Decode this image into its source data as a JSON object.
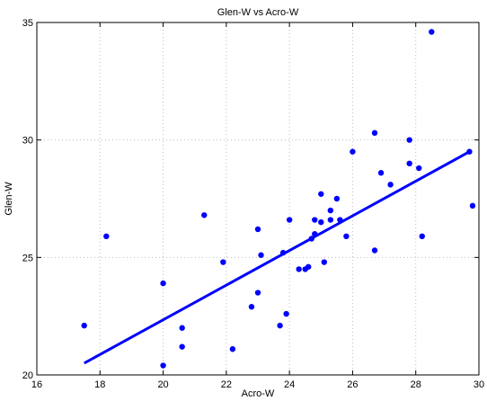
{
  "chart_data": {
    "type": "scatter",
    "title": "Glen-W vs Acro-W",
    "xlabel": "Acro-W",
    "ylabel": "Glen-W",
    "xlim": [
      16,
      30
    ],
    "ylim": [
      20,
      35
    ],
    "xticks": [
      16,
      18,
      20,
      22,
      24,
      26,
      28,
      30
    ],
    "yticks": [
      20,
      25,
      30,
      35
    ],
    "grid": true,
    "colors": {
      "points": "#0000ff",
      "fit_line": "#0000ff",
      "axes": "#000000",
      "grid": "#bfbfbf"
    },
    "series": [
      {
        "type": "scatter",
        "points": [
          [
            17.5,
            22.1
          ],
          [
            18.2,
            25.9
          ],
          [
            20.0,
            23.9
          ],
          [
            20.0,
            20.4
          ],
          [
            20.6,
            22.0
          ],
          [
            20.6,
            21.2
          ],
          [
            21.3,
            26.8
          ],
          [
            21.9,
            24.8
          ],
          [
            22.2,
            21.1
          ],
          [
            22.8,
            22.9
          ],
          [
            23.0,
            23.5
          ],
          [
            23.0,
            26.2
          ],
          [
            23.1,
            25.1
          ],
          [
            23.7,
            22.1
          ],
          [
            23.8,
            25.2
          ],
          [
            23.9,
            22.6
          ],
          [
            24.0,
            26.6
          ],
          [
            24.3,
            24.5
          ],
          [
            24.5,
            24.5
          ],
          [
            24.6,
            24.6
          ],
          [
            24.7,
            25.8
          ],
          [
            24.8,
            26.0
          ],
          [
            24.8,
            26.6
          ],
          [
            25.0,
            26.5
          ],
          [
            25.0,
            27.7
          ],
          [
            25.1,
            24.8
          ],
          [
            25.3,
            27.0
          ],
          [
            25.3,
            26.6
          ],
          [
            25.5,
            27.5
          ],
          [
            25.6,
            26.6
          ],
          [
            25.8,
            25.9
          ],
          [
            26.0,
            29.5
          ],
          [
            26.7,
            30.3
          ],
          [
            26.7,
            25.3
          ],
          [
            26.9,
            28.6
          ],
          [
            27.2,
            28.1
          ],
          [
            27.8,
            30.0
          ],
          [
            27.8,
            29.0
          ],
          [
            28.1,
            28.8
          ],
          [
            28.2,
            25.9
          ],
          [
            28.5,
            34.6
          ],
          [
            29.7,
            29.5
          ],
          [
            29.8,
            27.2
          ]
        ]
      },
      {
        "type": "line",
        "points": [
          [
            17.5,
            20.5
          ],
          [
            29.7,
            29.5
          ]
        ]
      }
    ]
  }
}
